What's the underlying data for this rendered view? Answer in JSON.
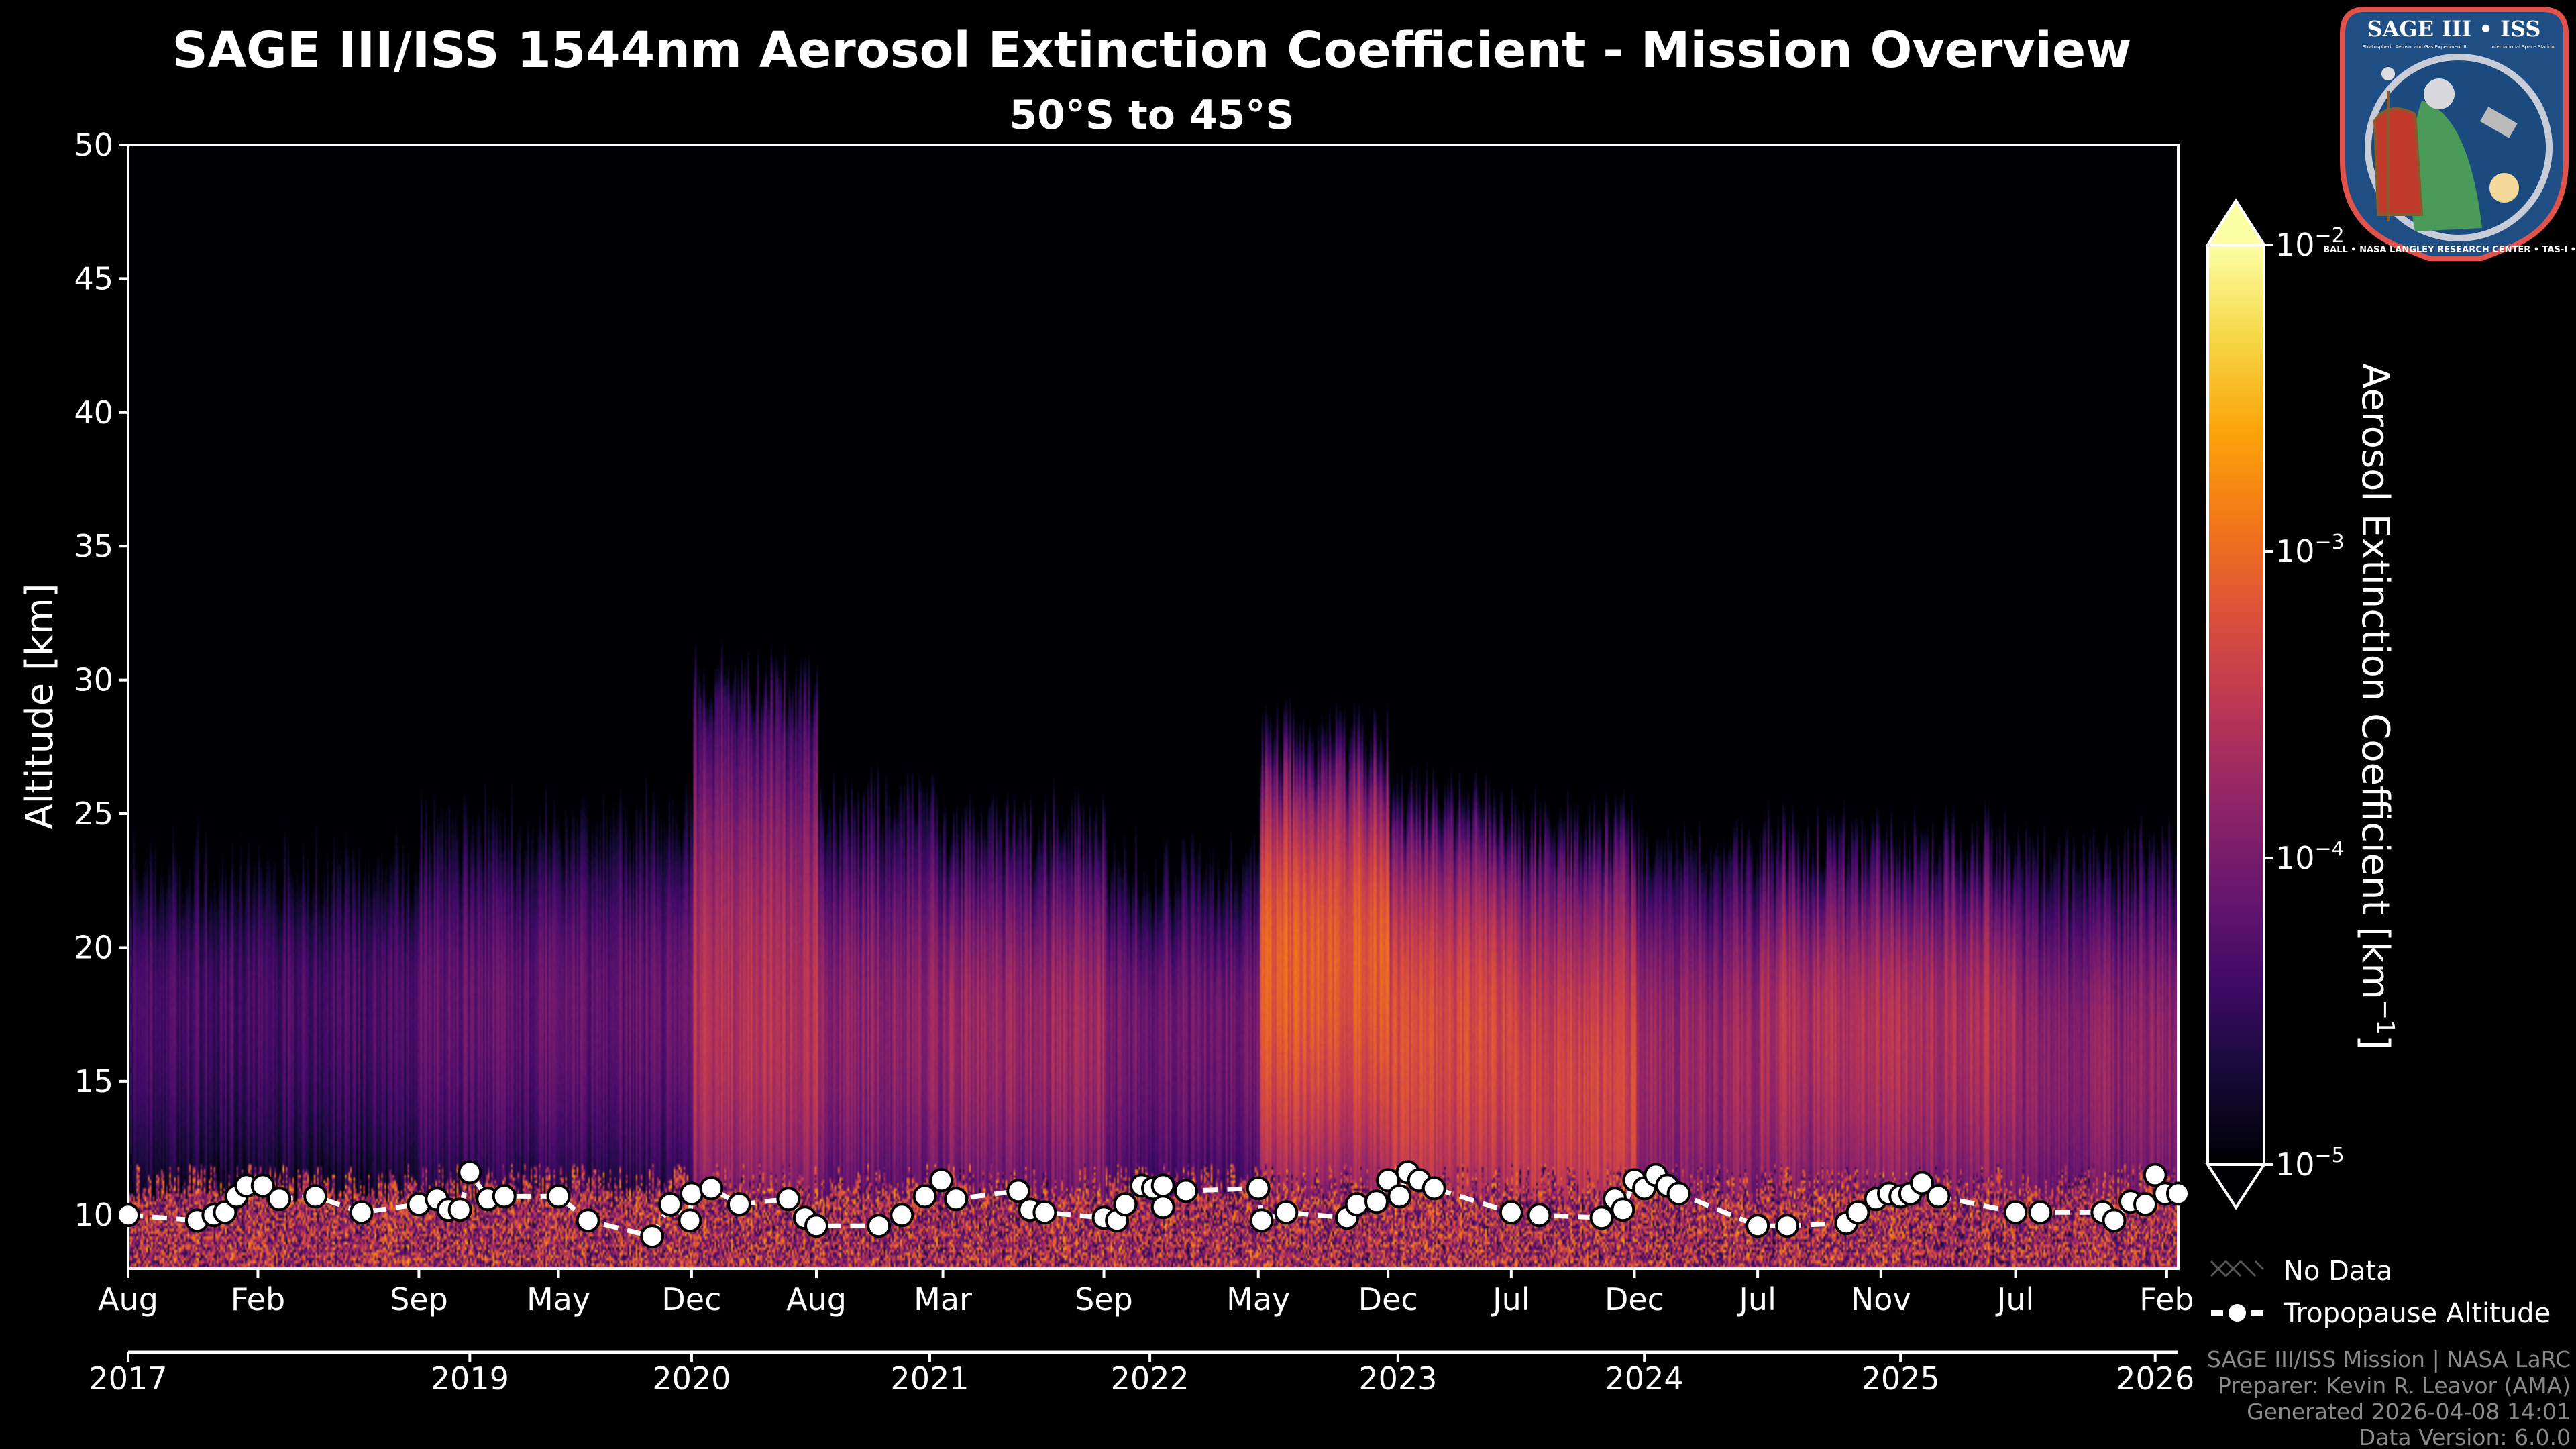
{
  "chart_data": {
    "type": "heatmap",
    "title": "SAGE III/ISS 1544nm Aerosol Extinction Coefficient - Mission Overview",
    "subtitle": "50°S to 45°S",
    "ylabel": "Altitude [km]",
    "ylim": [
      8,
      50
    ],
    "yticks": [
      "10",
      "15",
      "20",
      "25",
      "30",
      "35",
      "40",
      "45",
      "50"
    ],
    "xticks_month": [
      "Aug",
      "Feb",
      "Sep",
      "May",
      "Dec",
      "Aug",
      "Mar",
      "Sep",
      "May",
      "Dec",
      "Jul",
      "Dec",
      "Jul",
      "Nov",
      "Jul",
      "Feb"
    ],
    "xticks_year": [
      "2017",
      "2019",
      "2020",
      "2021",
      "2022",
      "2023",
      "2024",
      "2025",
      "2026"
    ],
    "colorbar": {
      "label": "Aerosol Extinction Coefficient [km",
      "label_exp": "−1",
      "label_close": "]",
      "scale": "log",
      "range": [
        1e-05,
        0.01
      ],
      "ticks": [
        {
          "base": "10",
          "exp": "−2",
          "log10": -2
        },
        {
          "base": "10",
          "exp": "−3",
          "log10": -3
        },
        {
          "base": "10",
          "exp": "−4",
          "log10": -4
        },
        {
          "base": "10",
          "exp": "−5",
          "log10": -5
        }
      ],
      "colormap": "inferno",
      "extend": "both"
    },
    "segments": [
      {
        "start_tick": 0,
        "end_tick": 2,
        "peak_log10": -4.35,
        "layer_top_km": 24,
        "layer_center_km": 18
      },
      {
        "start_tick": 2,
        "end_tick": 4,
        "peak_log10": -4.15,
        "layer_top_km": 25,
        "layer_center_km": 18
      },
      {
        "start_tick": 4,
        "end_tick": 5,
        "peak_log10": -3.55,
        "layer_top_km": 29,
        "layer_center_km": 17
      },
      {
        "start_tick": 5,
        "end_tick": 6,
        "peak_log10": -3.85,
        "layer_top_km": 25,
        "layer_center_km": 17
      },
      {
        "start_tick": 6,
        "end_tick": 7,
        "peak_log10": -3.75,
        "layer_top_km": 24,
        "layer_center_km": 17
      },
      {
        "start_tick": 7,
        "end_tick": 8,
        "peak_log10": -4.05,
        "layer_top_km": 23,
        "layer_center_km": 17
      },
      {
        "start_tick": 8,
        "end_tick": 9,
        "peak_log10": -3.1,
        "layer_top_km": 26,
        "layer_center_km": 19.5
      },
      {
        "start_tick": 9,
        "end_tick": 10,
        "peak_log10": -3.3,
        "layer_top_km": 24,
        "layer_center_km": 17
      },
      {
        "start_tick": 10,
        "end_tick": 11,
        "peak_log10": -3.35,
        "layer_top_km": 23,
        "layer_center_km": 15
      },
      {
        "start_tick": 11,
        "end_tick": 12,
        "peak_log10": -3.75,
        "layer_top_km": 23,
        "layer_center_km": 16
      },
      {
        "start_tick": 12,
        "end_tick": 14,
        "peak_log10": -3.6,
        "layer_top_km": 23,
        "layer_center_km": 17
      },
      {
        "start_tick": 14,
        "end_tick": 15,
        "peak_log10": -3.85,
        "layer_top_km": 23,
        "layer_center_km": 16
      }
    ],
    "tropopause": {
      "label": "Tropopause Altitude",
      "altitude_km": [
        10.0,
        9.8,
        10.0,
        10.1,
        10.7,
        11.1,
        11.1,
        10.6,
        10.7,
        10.1,
        10.4,
        10.6,
        10.2,
        10.2,
        11.6,
        10.6,
        10.7,
        10.7,
        9.8,
        9.2,
        10.4,
        9.8,
        10.8,
        11.0,
        10.4,
        10.6,
        9.9,
        9.6,
        9.6,
        10.0,
        10.7,
        11.3,
        10.6,
        10.9,
        10.2,
        10.1,
        9.9,
        9.8,
        10.4,
        11.1,
        11.0,
        11.1,
        10.3,
        10.9,
        11.0,
        9.8,
        10.1,
        9.9,
        10.4,
        10.5,
        11.3,
        10.7,
        11.6,
        11.3,
        11.0,
        10.1,
        10.0,
        9.9,
        10.6,
        10.2,
        11.3,
        11.0,
        11.5,
        11.1,
        10.8,
        9.6,
        9.6,
        9.7,
        10.1,
        10.6,
        10.8,
        10.7,
        10.8,
        11.2,
        10.7,
        10.1,
        10.1,
        10.1,
        9.8,
        10.5,
        10.4,
        11.5,
        10.8,
        10.8
      ]
    },
    "legend": {
      "no_data": "No Data",
      "tropopause": "Tropopause Altitude"
    }
  },
  "footer": [
    "SAGE III/ISS Mission | NASA LaRC",
    "Preparer: Kevin R. Leavor (AMA)",
    "Generated 2026-04-08 14:01",
    "Data Version: 6.0.0"
  ],
  "logo": {
    "title": "SAGE III • ISS",
    "left_sub": "Stratospheric Aerosol and Gas Experiment III",
    "right_sub": "International Space Station",
    "ring": "BALL • NASA LANGLEY RESEARCH CENTER • TAS-I • ESA"
  },
  "colors": {
    "background": "#000000",
    "tropopause": "#ffffff",
    "footer": "#8a8a8a",
    "logo_border": "#e0524a",
    "logo_fill": "#1f4e85"
  }
}
